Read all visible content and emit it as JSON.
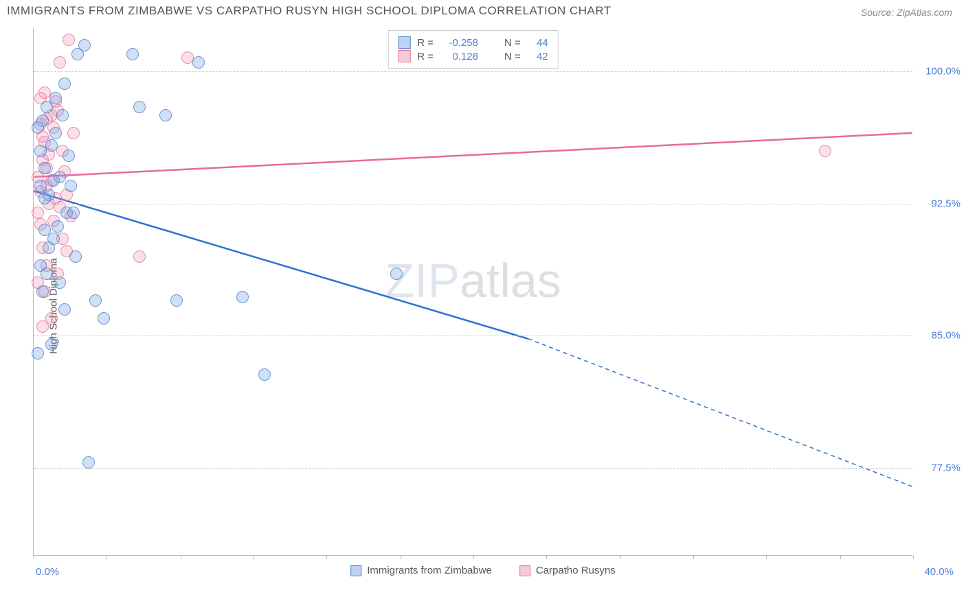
{
  "title": "IMMIGRANTS FROM ZIMBABWE VS CARPATHO RUSYN HIGH SCHOOL DIPLOMA CORRELATION CHART",
  "source": "Source: ZipAtlas.com",
  "y_axis_label": "High School Diploma",
  "watermark": "ZIPatlas",
  "chart": {
    "type": "scatter",
    "xlim": [
      0.0,
      40.0
    ],
    "ylim": [
      72.5,
      102.5
    ],
    "x_ticks": [
      0,
      3.3,
      6.7,
      10.0,
      13.3,
      16.7,
      20.0,
      23.3,
      26.7,
      30.0,
      33.3,
      36.7,
      40.0
    ],
    "y_gridlines": [
      77.5,
      85.0,
      92.5,
      100.0
    ],
    "y_tick_labels": [
      "77.5%",
      "85.0%",
      "92.5%",
      "100.0%"
    ],
    "x_min_label": "0.0%",
    "x_max_label": "40.0%",
    "background_color": "#ffffff",
    "grid_color": "#cccccc",
    "axis_color": "#bbbbbb",
    "tick_label_color": "#4a7fd8",
    "text_color": "#555555",
    "marker_radius": 9,
    "series": [
      {
        "name": "Immigrants from Zimbabwe",
        "color_fill": "rgba(120,165,225,0.35)",
        "color_stroke": "rgba(70,120,200,0.7)",
        "trend_color": "#2f6fd0",
        "trend_width": 2.5,
        "R": "-0.258",
        "N": "44",
        "trend_start": {
          "x": 0.0,
          "y": 93.2
        },
        "trend_solid_end": {
          "x": 22.5,
          "y": 84.8
        },
        "trend_end": {
          "x": 40.0,
          "y": 76.4
        },
        "points": [
          {
            "x": 0.3,
            "y": 93.5
          },
          {
            "x": 0.5,
            "y": 94.5
          },
          {
            "x": 0.7,
            "y": 93.0
          },
          {
            "x": 0.8,
            "y": 95.8
          },
          {
            "x": 0.4,
            "y": 97.2
          },
          {
            "x": 0.6,
            "y": 98.0
          },
          {
            "x": 1.0,
            "y": 96.5
          },
          {
            "x": 1.2,
            "y": 94.0
          },
          {
            "x": 1.5,
            "y": 92.0
          },
          {
            "x": 0.9,
            "y": 90.5
          },
          {
            "x": 0.3,
            "y": 89.0
          },
          {
            "x": 0.5,
            "y": 91.0
          },
          {
            "x": 1.8,
            "y": 92.0
          },
          {
            "x": 2.0,
            "y": 101.0
          },
          {
            "x": 2.3,
            "y": 101.5
          },
          {
            "x": 1.3,
            "y": 97.5
          },
          {
            "x": 1.6,
            "y": 95.2
          },
          {
            "x": 0.6,
            "y": 88.5
          },
          {
            "x": 0.4,
            "y": 87.5
          },
          {
            "x": 1.2,
            "y": 88.0
          },
          {
            "x": 2.8,
            "y": 87.0
          },
          {
            "x": 3.2,
            "y": 86.0
          },
          {
            "x": 4.8,
            "y": 98.0
          },
          {
            "x": 4.5,
            "y": 101.0
          },
          {
            "x": 6.0,
            "y": 97.5
          },
          {
            "x": 7.5,
            "y": 100.5
          },
          {
            "x": 6.5,
            "y": 87.0
          },
          {
            "x": 9.5,
            "y": 87.2
          },
          {
            "x": 16.5,
            "y": 88.5
          },
          {
            "x": 10.5,
            "y": 82.8
          },
          {
            "x": 2.5,
            "y": 77.8
          },
          {
            "x": 0.2,
            "y": 84.0
          },
          {
            "x": 0.8,
            "y": 84.5
          },
          {
            "x": 1.4,
            "y": 86.5
          },
          {
            "x": 0.3,
            "y": 95.5
          },
          {
            "x": 0.9,
            "y": 93.8
          },
          {
            "x": 1.1,
            "y": 91.2
          },
          {
            "x": 0.5,
            "y": 92.8
          },
          {
            "x": 1.7,
            "y": 93.5
          },
          {
            "x": 0.2,
            "y": 96.8
          },
          {
            "x": 1.9,
            "y": 89.5
          },
          {
            "x": 1.0,
            "y": 98.5
          },
          {
            "x": 1.4,
            "y": 99.3
          },
          {
            "x": 0.7,
            "y": 90.0
          }
        ]
      },
      {
        "name": "Carpatho Rusyns",
        "color_fill": "rgba(240,150,180,0.3)",
        "color_stroke": "rgba(225,110,150,0.7)",
        "trend_color": "#e86a96",
        "trend_width": 2.5,
        "R": "0.128",
        "N": "42",
        "trend_start": {
          "x": 0.0,
          "y": 94.0
        },
        "trend_end": {
          "x": 40.0,
          "y": 96.5
        },
        "points": [
          {
            "x": 0.2,
            "y": 94.0
          },
          {
            "x": 0.4,
            "y": 95.0
          },
          {
            "x": 0.6,
            "y": 93.5
          },
          {
            "x": 0.5,
            "y": 96.0
          },
          {
            "x": 0.3,
            "y": 97.0
          },
          {
            "x": 0.8,
            "y": 97.5
          },
          {
            "x": 1.0,
            "y": 98.3
          },
          {
            "x": 0.7,
            "y": 92.5
          },
          {
            "x": 0.9,
            "y": 91.5
          },
          {
            "x": 0.4,
            "y": 90.0
          },
          {
            "x": 0.6,
            "y": 89.0
          },
          {
            "x": 1.1,
            "y": 88.5
          },
          {
            "x": 1.3,
            "y": 95.5
          },
          {
            "x": 1.5,
            "y": 93.0
          },
          {
            "x": 0.2,
            "y": 92.0
          },
          {
            "x": 1.8,
            "y": 96.5
          },
          {
            "x": 0.3,
            "y": 98.5
          },
          {
            "x": 1.2,
            "y": 100.5
          },
          {
            "x": 1.6,
            "y": 101.8
          },
          {
            "x": 0.5,
            "y": 87.5
          },
          {
            "x": 0.8,
            "y": 86.0
          },
          {
            "x": 4.8,
            "y": 89.5
          },
          {
            "x": 7.0,
            "y": 100.8
          },
          {
            "x": 36.0,
            "y": 95.5
          },
          {
            "x": 0.6,
            "y": 94.5
          },
          {
            "x": 0.9,
            "y": 96.8
          },
          {
            "x": 1.4,
            "y": 94.3
          },
          {
            "x": 0.3,
            "y": 93.2
          },
          {
            "x": 1.0,
            "y": 92.8
          },
          {
            "x": 0.2,
            "y": 88.0
          },
          {
            "x": 1.7,
            "y": 91.8
          },
          {
            "x": 0.4,
            "y": 96.3
          },
          {
            "x": 1.1,
            "y": 97.8
          },
          {
            "x": 0.7,
            "y": 95.3
          },
          {
            "x": 1.3,
            "y": 90.5
          },
          {
            "x": 0.5,
            "y": 98.8
          },
          {
            "x": 0.8,
            "y": 93.8
          },
          {
            "x": 1.5,
            "y": 89.8
          },
          {
            "x": 0.3,
            "y": 91.3
          },
          {
            "x": 0.6,
            "y": 97.3
          },
          {
            "x": 1.2,
            "y": 92.3
          },
          {
            "x": 0.4,
            "y": 85.5
          }
        ]
      }
    ],
    "legend_top": {
      "r_prefix": "R =",
      "n_prefix": "N ="
    }
  }
}
